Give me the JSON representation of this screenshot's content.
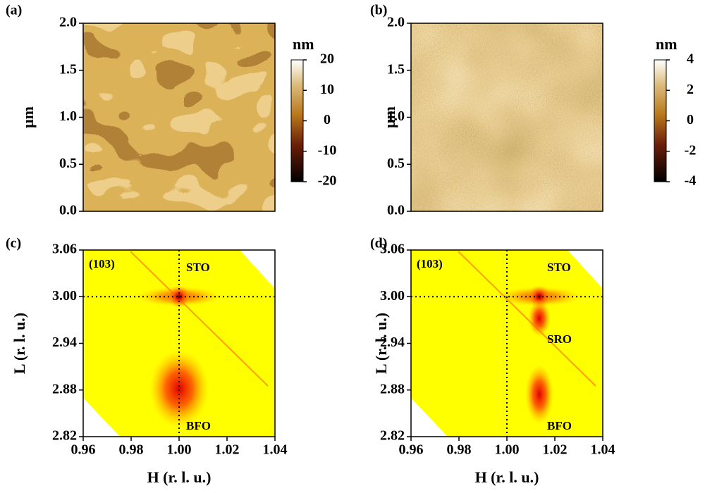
{
  "chart_data": [
    {
      "type": "afm",
      "panel": "(a)",
      "ylabel": "μm",
      "ylim": [
        0,
        2
      ],
      "yticks": [
        {
          "value": 0,
          "label": "0.0"
        },
        {
          "value": 0.5,
          "label": "0.5"
        },
        {
          "value": 1,
          "label": "1.0"
        },
        {
          "value": 1.5,
          "label": "1.5"
        },
        {
          "value": 2,
          "label": "2.0"
        }
      ],
      "colorbar": {
        "label": "nm",
        "lim": [
          -20,
          20
        ],
        "ticks": [
          -20,
          -10,
          0,
          10,
          20
        ]
      }
    },
    {
      "type": "afm",
      "panel": "(b)",
      "ylabel": "μm",
      "ylim": [
        0,
        2
      ],
      "yticks": [
        {
          "value": 0,
          "label": "0.0"
        },
        {
          "value": 0.5,
          "label": "0.5"
        },
        {
          "value": 1,
          "label": "1.0"
        },
        {
          "value": 1.5,
          "label": "1.5"
        },
        {
          "value": 2,
          "label": "2.0"
        }
      ],
      "colorbar": {
        "label": "nm",
        "lim": [
          -4,
          4
        ],
        "ticks": [
          -4,
          -2,
          0,
          2,
          4
        ]
      }
    },
    {
      "type": "rsm",
      "panel": "(c)",
      "xlabel": "H (r. l. u.)",
      "ylabel": "L (r. l. u.)",
      "xlim": [
        0.96,
        1.04
      ],
      "xticks": [
        0.96,
        0.98,
        {
          "value": 1,
          "label": "1.00"
        },
        1.02,
        1.04
      ],
      "ylim": [
        2.82,
        3.06
      ],
      "yticks": [
        2.82,
        2.88,
        2.94,
        {
          "value": 3,
          "label": "3.00"
        },
        3.06
      ],
      "reference_lines": {
        "x": 1,
        "y": 3
      },
      "annotations": [
        "(103)",
        "STO",
        "BFO"
      ]
    },
    {
      "type": "rsm",
      "panel": "(d)",
      "xlabel": "H (r. l. u.)",
      "ylabel": "L (r. l. u.)",
      "xlim": [
        0.96,
        1.04
      ],
      "xticks": [
        0.96,
        0.98,
        {
          "value": 1,
          "label": "1.00"
        },
        1.02,
        1.04
      ],
      "ylim": [
        2.82,
        3.06
      ],
      "yticks": [
        2.82,
        2.88,
        2.94,
        {
          "value": 3,
          "label": "3.00"
        },
        3.06
      ],
      "reference_lines": {
        "x": 1,
        "y": 3
      },
      "annotations": [
        "(103)",
        "STO",
        "SRO",
        "BFO"
      ]
    }
  ]
}
